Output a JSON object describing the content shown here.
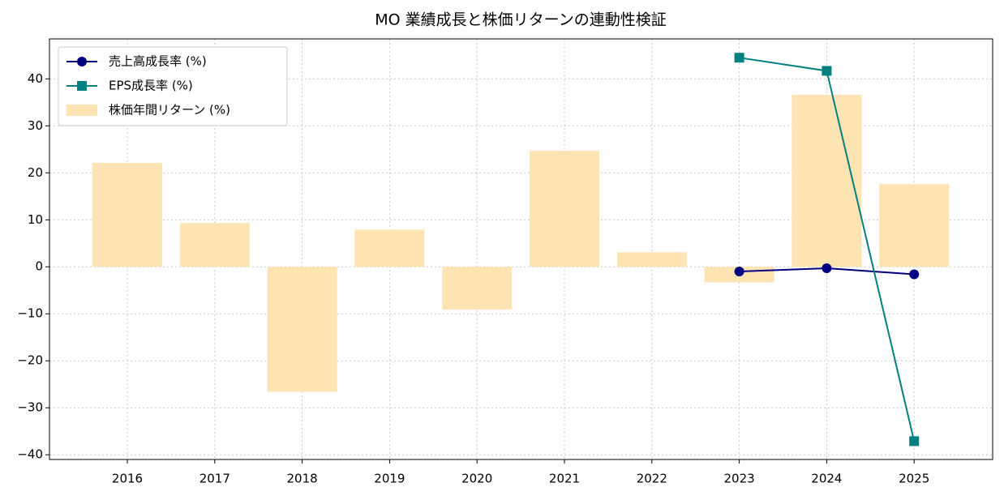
{
  "chart_data": {
    "type": "bar-line",
    "title": "MO 業績成長と株価リターンの連動性検証",
    "categories": [
      "2016",
      "2017",
      "2018",
      "2019",
      "2020",
      "2021",
      "2022",
      "2023",
      "2024",
      "2025"
    ],
    "series": [
      {
        "name": "売上高成長率 (%)",
        "type": "line",
        "marker": "circle",
        "color": "#000080",
        "values": [
          null,
          null,
          null,
          null,
          null,
          null,
          null,
          -1.0,
          -0.3,
          -1.6
        ]
      },
      {
        "name": "EPS成長率 (%)",
        "type": "line",
        "marker": "square",
        "color": "#008080",
        "values": [
          null,
          null,
          null,
          null,
          null,
          null,
          null,
          44.5,
          41.7,
          -37.1
        ]
      },
      {
        "name": "株価年間リターン (%)",
        "type": "bar",
        "color": "#ffe4b3",
        "values": [
          22.1,
          9.3,
          -26.6,
          7.9,
          -9.1,
          24.7,
          3.1,
          -3.3,
          36.6,
          17.6
        ]
      }
    ],
    "ylim": [
      -41,
      48.5
    ],
    "yticks": [
      {
        "value": -40,
        "label": "−40"
      },
      {
        "value": -30,
        "label": "−30"
      },
      {
        "value": -20,
        "label": "−20"
      },
      {
        "value": -10,
        "label": "−10"
      },
      0,
      10,
      20,
      30,
      40
    ],
    "grid": true,
    "legend": "upper left"
  }
}
